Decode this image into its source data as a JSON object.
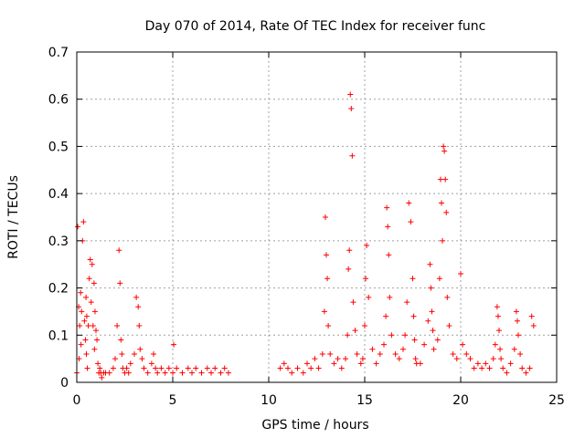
{
  "chart_data": {
    "type": "scatter",
    "title": "Day 070 of 2014, Rate Of TEC Index for receiver func",
    "xlabel": "GPS time / hours",
    "ylabel": "ROTI / TECUs",
    "xlim": [
      0,
      25
    ],
    "ylim": [
      0,
      0.7
    ],
    "grid": true,
    "marker": "+",
    "color": "#ff0000",
    "x_ticks": [
      {
        "value": 0,
        "label": "0"
      },
      {
        "value": 5,
        "label": "5"
      },
      {
        "value": 10,
        "label": "10"
      },
      {
        "value": 15,
        "label": "15"
      },
      {
        "value": 20,
        "label": "20"
      },
      {
        "value": 25,
        "label": "25"
      }
    ],
    "y_ticks": [
      {
        "value": 0,
        "label": "0"
      },
      {
        "value": 0.1,
        "label": "0.1"
      },
      {
        "value": 0.2,
        "label": "0.2"
      },
      {
        "value": 0.3,
        "label": "0.3"
      },
      {
        "value": 0.4,
        "label": "0.4"
      },
      {
        "value": 0.5,
        "label": "0.5"
      },
      {
        "value": 0.6,
        "label": "0.6"
      },
      {
        "value": 0.7,
        "label": "0.7"
      }
    ],
    "series": [
      {
        "name": "ROTI",
        "x": [
          0.0,
          0.05,
          0.1,
          0.12,
          0.15,
          0.2,
          0.22,
          0.25,
          0.3,
          0.35,
          0.4,
          0.45,
          0.48,
          0.5,
          0.52,
          0.55,
          0.6,
          0.65,
          0.7,
          0.75,
          0.8,
          0.85,
          0.9,
          0.92,
          0.95,
          1.0,
          1.05,
          1.1,
          1.15,
          1.2,
          1.25,
          1.3,
          1.4,
          1.5,
          1.7,
          1.9,
          2.0,
          2.1,
          2.2,
          2.25,
          2.3,
          2.35,
          2.4,
          2.5,
          2.6,
          2.7,
          2.8,
          3.0,
          3.1,
          3.2,
          3.25,
          3.3,
          3.4,
          3.5,
          3.7,
          3.9,
          4.0,
          4.1,
          4.2,
          4.4,
          4.6,
          4.8,
          5.0,
          5.05,
          5.2,
          5.5,
          5.8,
          6.0,
          6.2,
          6.5,
          6.8,
          7.0,
          7.2,
          7.5,
          7.7,
          7.9,
          10.6,
          10.8,
          11.0,
          11.2,
          11.5,
          11.8,
          12.0,
          12.2,
          12.4,
          12.6,
          12.8,
          12.9,
          12.95,
          13.0,
          13.05,
          13.1,
          13.2,
          13.4,
          13.6,
          13.8,
          14.0,
          14.1,
          14.15,
          14.2,
          14.25,
          14.3,
          14.35,
          14.4,
          14.5,
          14.6,
          14.8,
          14.9,
          15.0,
          15.05,
          15.1,
          15.2,
          15.4,
          15.6,
          15.8,
          16.0,
          16.1,
          16.15,
          16.2,
          16.25,
          16.3,
          16.4,
          16.6,
          16.8,
          17.0,
          17.1,
          17.2,
          17.3,
          17.4,
          17.5,
          17.55,
          17.6,
          17.65,
          17.7,
          17.9,
          18.1,
          18.3,
          18.4,
          18.45,
          18.5,
          18.55,
          18.6,
          18.8,
          18.9,
          18.95,
          19.0,
          19.05,
          19.1,
          19.15,
          19.2,
          19.25,
          19.3,
          19.4,
          19.6,
          19.8,
          20.0,
          20.1,
          20.3,
          20.5,
          20.7,
          20.9,
          21.1,
          21.3,
          21.5,
          21.7,
          21.8,
          21.9,
          21.95,
          22.0,
          22.05,
          22.1,
          22.2,
          22.4,
          22.6,
          22.8,
          22.9,
          22.95,
          23.0,
          23.1,
          23.2,
          23.4,
          23.6,
          23.7,
          23.8
        ],
        "y": [
          0.02,
          0.33,
          0.16,
          0.05,
          0.12,
          0.19,
          0.08,
          0.15,
          0.3,
          0.34,
          0.13,
          0.09,
          0.18,
          0.06,
          0.14,
          0.03,
          0.12,
          0.22,
          0.26,
          0.17,
          0.25,
          0.12,
          0.21,
          0.07,
          0.15,
          0.11,
          0.09,
          0.04,
          0.02,
          0.03,
          0.02,
          0.01,
          0.02,
          0.02,
          0.02,
          0.03,
          0.05,
          0.12,
          0.28,
          0.21,
          0.09,
          0.06,
          0.03,
          0.02,
          0.03,
          0.02,
          0.04,
          0.06,
          0.18,
          0.16,
          0.12,
          0.07,
          0.05,
          0.03,
          0.02,
          0.04,
          0.06,
          0.03,
          0.02,
          0.03,
          0.02,
          0.03,
          0.02,
          0.08,
          0.03,
          0.02,
          0.03,
          0.02,
          0.03,
          0.02,
          0.03,
          0.02,
          0.03,
          0.02,
          0.03,
          0.02,
          0.03,
          0.04,
          0.03,
          0.02,
          0.03,
          0.02,
          0.04,
          0.03,
          0.05,
          0.03,
          0.06,
          0.15,
          0.35,
          0.27,
          0.22,
          0.12,
          0.06,
          0.04,
          0.05,
          0.03,
          0.05,
          0.1,
          0.24,
          0.28,
          0.61,
          0.58,
          0.48,
          0.17,
          0.11,
          0.06,
          0.04,
          0.05,
          0.12,
          0.22,
          0.29,
          0.18,
          0.07,
          0.04,
          0.06,
          0.08,
          0.14,
          0.37,
          0.33,
          0.27,
          0.18,
          0.1,
          0.06,
          0.05,
          0.07,
          0.1,
          0.17,
          0.38,
          0.34,
          0.22,
          0.14,
          0.09,
          0.05,
          0.04,
          0.04,
          0.08,
          0.13,
          0.25,
          0.2,
          0.15,
          0.11,
          0.07,
          0.09,
          0.22,
          0.43,
          0.38,
          0.3,
          0.5,
          0.49,
          0.43,
          0.36,
          0.18,
          0.12,
          0.06,
          0.05,
          0.23,
          0.08,
          0.06,
          0.05,
          0.03,
          0.04,
          0.03,
          0.04,
          0.03,
          0.05,
          0.08,
          0.16,
          0.14,
          0.11,
          0.07,
          0.05,
          0.03,
          0.02,
          0.04,
          0.07,
          0.15,
          0.13,
          0.1,
          0.06,
          0.03,
          0.02,
          0.03,
          0.14,
          0.12
        ]
      }
    ]
  }
}
